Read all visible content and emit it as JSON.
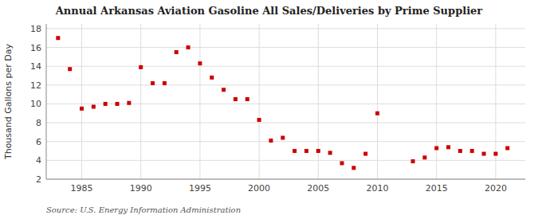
{
  "chart_data": {
    "type": "scatter",
    "title": "Annual Arkansas Aviation Gasoline All Sales/Deliveries by Prime Supplier",
    "ylabel": "Thousand Gallons per Day",
    "annotations": [
      "Source: U.S. Energy Information Administration"
    ],
    "x": [
      1983,
      1984,
      1985,
      1986,
      1987,
      1988,
      1989,
      1990,
      1991,
      1992,
      1993,
      1994,
      1995,
      1996,
      1997,
      1998,
      1999,
      2000,
      2001,
      2002,
      2003,
      2004,
      2005,
      2006,
      2007,
      2008,
      2009,
      2010,
      2013,
      2014,
      2015,
      2016,
      2017,
      2018,
      2019,
      2020,
      2021
    ],
    "values": [
      17.0,
      13.7,
      9.5,
      9.7,
      10.0,
      10.0,
      10.1,
      13.9,
      12.2,
      12.2,
      15.5,
      16.0,
      14.3,
      12.8,
      11.5,
      10.5,
      10.5,
      8.3,
      6.1,
      6.4,
      5.0,
      5.0,
      5.0,
      4.8,
      3.7,
      3.2,
      4.7,
      9.0,
      3.9,
      4.3,
      5.3,
      5.4,
      5.0,
      5.0,
      4.7,
      4.7,
      5.3
    ],
    "color": "#cc0000",
    "marker": "square",
    "xlim": [
      1982,
      2022.5
    ],
    "ylim": [
      2,
      18.5
    ],
    "xticks": [
      1985,
      1990,
      1995,
      2000,
      2005,
      2010,
      2015,
      2020
    ],
    "yticks": [
      2,
      4,
      6,
      8,
      10,
      12,
      14,
      16,
      18
    ],
    "grid": true
  }
}
